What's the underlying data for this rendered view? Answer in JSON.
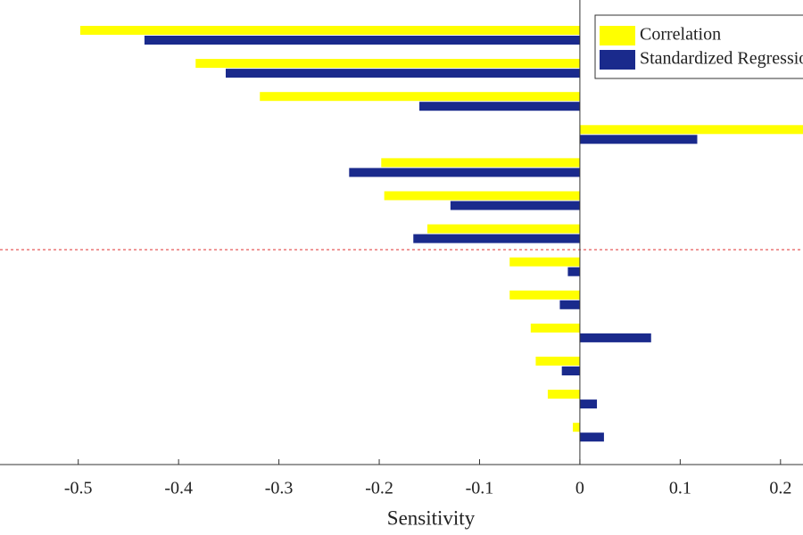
{
  "chart_data": {
    "type": "barh",
    "xlabel": "Sensitivity",
    "categories": [
      null,
      null,
      null,
      null,
      null,
      null,
      null,
      null,
      null,
      null,
      null,
      null,
      null
    ],
    "series": [
      {
        "name": "Correlation",
        "color": "#ffff00",
        "values": [
          -0.498,
          -0.383,
          -0.319,
          0.23,
          -0.198,
          -0.195,
          -0.152,
          -0.07,
          -0.07,
          -0.049,
          -0.044,
          -0.032,
          -0.007
        ]
      },
      {
        "name": "Standardized Regression",
        "color": "#1a2a8c",
        "values": [
          -0.434,
          -0.353,
          -0.16,
          0.117,
          -0.23,
          -0.129,
          -0.166,
          -0.012,
          -0.02,
          0.071,
          -0.018,
          0.017,
          0.024
        ]
      }
    ],
    "xlim": [
      -0.578,
      0.2224
    ],
    "xticks": [
      -0.5,
      -0.4,
      -0.3,
      -0.2,
      -0.1,
      0,
      0.1,
      0.2
    ],
    "legend": "upper right"
  }
}
